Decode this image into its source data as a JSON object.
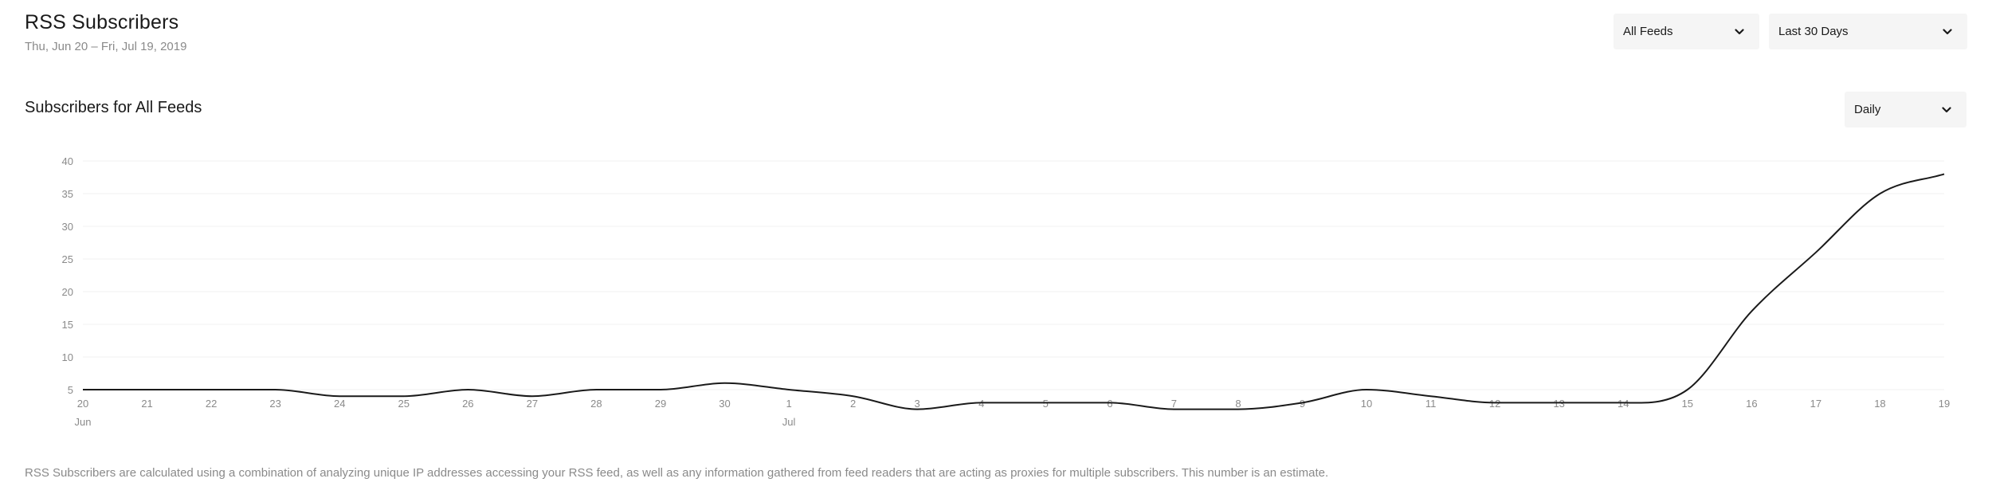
{
  "header": {
    "title": "RSS Subscribers",
    "date_range": "Thu, Jun 20 – Fri, Jul 19, 2019"
  },
  "filters": {
    "feed": {
      "selected": "All Feeds",
      "icon": "chevron-down-icon"
    },
    "range": {
      "selected": "Last 30 Days",
      "icon": "chevron-down-icon"
    }
  },
  "section": {
    "title": "Subscribers for All Feeds",
    "interval": {
      "selected": "Daily",
      "icon": "chevron-down-icon"
    }
  },
  "colors": {
    "line": "#1a1a1a",
    "grid": "#f1f1f1",
    "tick_text": "#8a8a8a",
    "dropdown_bg": "#f5f5f5"
  },
  "chart_data": {
    "type": "line",
    "title": "Subscribers for All Feeds",
    "xlabel": "",
    "ylabel": "",
    "ylim": [
      0,
      40
    ],
    "yticks": [
      5,
      10,
      15,
      20,
      25,
      30,
      35,
      40
    ],
    "grid": true,
    "x": [
      "Jun 20",
      "Jun 21",
      "Jun 22",
      "Jun 23",
      "Jun 24",
      "Jun 25",
      "Jun 26",
      "Jun 27",
      "Jun 28",
      "Jun 29",
      "Jun 30",
      "Jul 1",
      "Jul 2",
      "Jul 3",
      "Jul 4",
      "Jul 5",
      "Jul 6",
      "Jul 7",
      "Jul 8",
      "Jul 9",
      "Jul 10",
      "Jul 11",
      "Jul 12",
      "Jul 13",
      "Jul 14",
      "Jul 15",
      "Jul 16",
      "Jul 17",
      "Jul 18",
      "Jul 19"
    ],
    "xtick_labels": [
      "20",
      "21",
      "22",
      "23",
      "24",
      "25",
      "26",
      "27",
      "28",
      "29",
      "30",
      "1",
      "2",
      "3",
      "4",
      "5",
      "6",
      "7",
      "8",
      "9",
      "10",
      "11",
      "12",
      "13",
      "14",
      "15",
      "16",
      "17",
      "18",
      "19"
    ],
    "month_labels": [
      {
        "index": 0,
        "label": "Jun"
      },
      {
        "index": 11,
        "label": "Jul"
      }
    ],
    "series": [
      {
        "values": [
          5,
          5,
          5,
          5,
          4,
          4,
          5,
          4,
          5,
          5,
          6,
          5,
          4,
          2,
          3,
          3,
          3,
          2,
          2,
          3,
          5,
          4,
          3,
          3,
          3,
          5,
          17,
          26,
          35,
          38
        ]
      }
    ]
  },
  "footnote": "RSS Subscribers are calculated using a combination of analyzing unique IP addresses accessing your RSS feed, as well as any information gathered from feed readers that are acting as proxies for multiple subscribers. This number is an estimate."
}
